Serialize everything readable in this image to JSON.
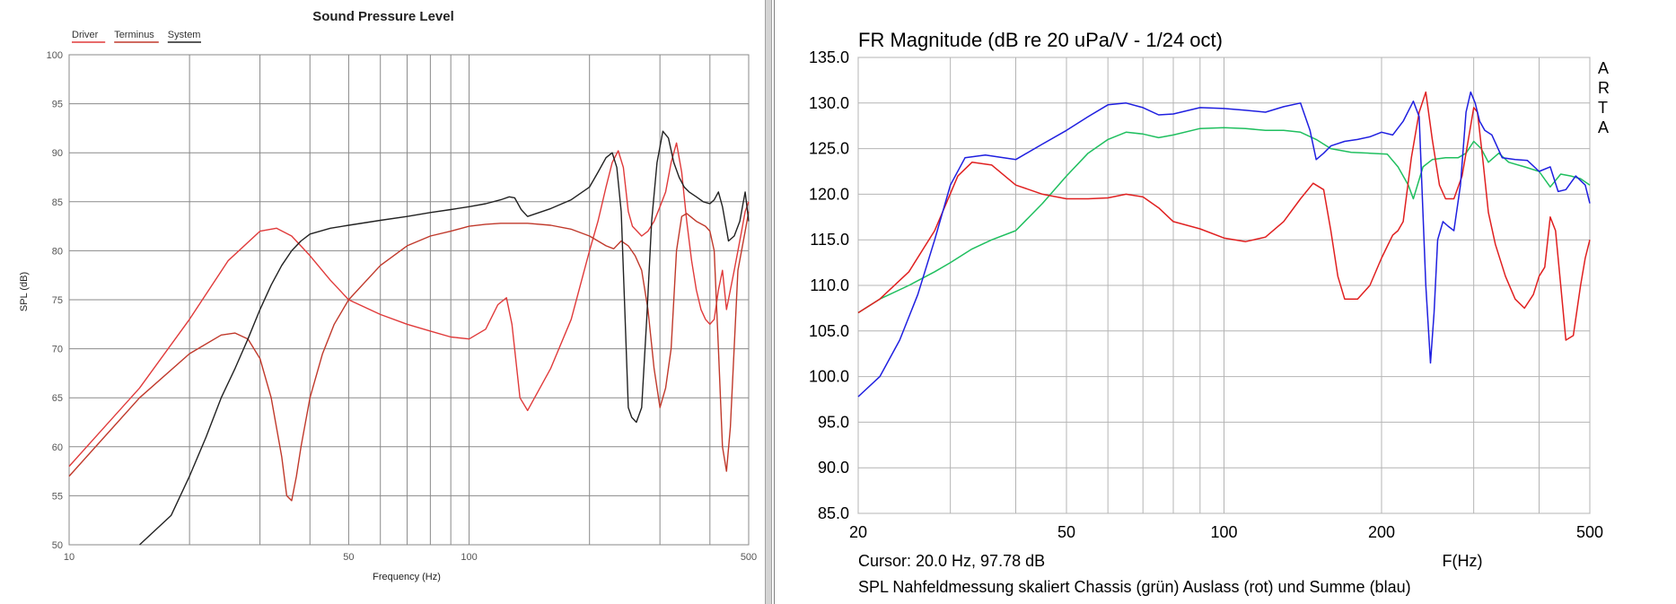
{
  "colors": {
    "driver": "#e03a3a",
    "terminus": "#c0392b",
    "system": "#222222",
    "blue": "#1f1fe0",
    "green": "#1fbf5f",
    "red": "#e02020"
  },
  "chart_data": [
    {
      "type": "line",
      "title": "Sound Pressure Level",
      "xlabel": "Frequency (Hz)",
      "ylabel": "SPL (dB)",
      "xscale": "log",
      "xlim": [
        10,
        500
      ],
      "ylim": [
        50,
        100
      ],
      "xticks": [
        10,
        50,
        100,
        500
      ],
      "xtick_labels": [
        "10",
        "50",
        "100",
        "500"
      ],
      "yticks": [
        50,
        55,
        60,
        65,
        70,
        75,
        80,
        85,
        90,
        95,
        100
      ],
      "ytick_labels": [
        "50",
        "55",
        "60",
        "65",
        "70",
        "75",
        "80",
        "85",
        "90",
        "95",
        "100"
      ],
      "grid": true,
      "legend_position": "top-left",
      "series": [
        {
          "name": "Driver",
          "color": "#e03a3a",
          "x": [
            10,
            15,
            20,
            25,
            30,
            33,
            36,
            40,
            45,
            50,
            60,
            70,
            80,
            90,
            100,
            110,
            118,
            124,
            128,
            134,
            140,
            160,
            180,
            200,
            210,
            220,
            228,
            236,
            243,
            250,
            256,
            263,
            270,
            280,
            290,
            300,
            310,
            320,
            330,
            340,
            350,
            360,
            370,
            380,
            390,
            400,
            410,
            420,
            430,
            440,
            460,
            480,
            490,
            500
          ],
          "y": [
            58,
            66,
            73,
            79,
            82,
            82.3,
            81.5,
            79.5,
            77,
            75,
            73.5,
            72.5,
            71.8,
            71.2,
            71,
            72,
            74.5,
            75.2,
            72.5,
            65,
            63.7,
            68,
            73,
            80,
            83,
            86.5,
            89,
            90.2,
            88.5,
            84,
            82.5,
            82,
            81.5,
            82,
            83,
            84.5,
            86,
            89,
            91,
            88,
            83,
            79,
            76,
            74,
            73,
            72.5,
            73,
            76,
            78,
            74,
            78,
            82,
            84,
            85
          ]
        },
        {
          "name": "Terminus",
          "color": "#c0392b",
          "x": [
            10,
            15,
            20,
            24,
            26,
            28,
            30,
            32,
            34,
            35,
            36,
            37,
            38,
            40,
            43,
            46,
            50,
            60,
            70,
            80,
            90,
            100,
            110,
            120,
            130,
            140,
            160,
            180,
            200,
            210,
            220,
            230,
            240,
            250,
            260,
            270,
            280,
            290,
            300,
            310,
            320,
            330,
            340,
            350,
            370,
            390,
            400,
            410,
            420,
            430,
            440,
            450,
            470,
            490,
            500
          ],
          "y": [
            57,
            65,
            69.5,
            71.4,
            71.6,
            71,
            69,
            65,
            59,
            55,
            54.5,
            57,
            60,
            65,
            69.5,
            72.5,
            75,
            78.5,
            80.5,
            81.5,
            82,
            82.5,
            82.7,
            82.8,
            82.8,
            82.8,
            82.6,
            82.2,
            81.5,
            81,
            80.5,
            80.2,
            81,
            80.5,
            79.5,
            78,
            74,
            68,
            64,
            66,
            70,
            80,
            83.5,
            83.8,
            83,
            82.5,
            82,
            80,
            70,
            60,
            57.5,
            62,
            78,
            82,
            84
          ]
        },
        {
          "name": "System",
          "color": "#222222",
          "x": [
            15,
            18,
            20,
            22,
            24,
            26,
            28,
            30,
            32,
            34,
            36,
            38,
            40,
            45,
            50,
            60,
            70,
            80,
            90,
            100,
            110,
            120,
            126,
            130,
            135,
            140,
            160,
            180,
            200,
            210,
            220,
            228,
            234,
            240,
            245,
            250,
            255,
            262,
            270,
            278,
            286,
            295,
            305,
            315,
            325,
            335,
            345,
            355,
            370,
            385,
            400,
            410,
            420,
            430,
            445,
            460,
            475,
            490,
            500
          ],
          "y": [
            50,
            53,
            57,
            61,
            65,
            68,
            71,
            74,
            76.5,
            78.5,
            80,
            81,
            81.7,
            82.3,
            82.6,
            83.1,
            83.5,
            83.9,
            84.2,
            84.5,
            84.8,
            85.2,
            85.5,
            85.4,
            84.2,
            83.5,
            84.3,
            85.2,
            86.5,
            88,
            89.5,
            90,
            88.5,
            84,
            74,
            64,
            63,
            62.5,
            64,
            73,
            83,
            89,
            92.2,
            91.5,
            89,
            87.5,
            86.5,
            86,
            85.5,
            85,
            84.8,
            85.2,
            86,
            84.5,
            81,
            81.5,
            83,
            86,
            83
          ]
        }
      ]
    },
    {
      "type": "line",
      "title": "FR Magnitude (dB re 20 uPa/V - 1/24 oct)",
      "xlabel": "F(Hz)",
      "xscale": "log",
      "xlim": [
        20,
        500
      ],
      "ylim": [
        85,
        135
      ],
      "xticks": [
        20,
        50,
        100,
        200,
        500
      ],
      "xtick_labels": [
        "20",
        "50",
        "100",
        "200",
        "500"
      ],
      "yticks": [
        85,
        90,
        95,
        100,
        105,
        110,
        115,
        120,
        125,
        130,
        135
      ],
      "ytick_labels": [
        "85.0",
        "90.0",
        "95.0",
        "100.0",
        "105.0",
        "110.0",
        "115.0",
        "120.0",
        "125.0",
        "130.0",
        "135.0"
      ],
      "grid": true,
      "side_text": [
        "A",
        "R",
        "T",
        "A"
      ],
      "cursor_text": "Cursor: 20.0 Hz, 97.78 dB",
      "caption": "SPL Nahfeldmessung skaliert Chassis (grün) Auslass (rot) und Summe (blau)",
      "series": [
        {
          "name": "Chassis (grün)",
          "color": "#1fbf5f",
          "x": [
            20,
            22,
            25,
            28,
            30,
            33,
            36,
            40,
            45,
            50,
            55,
            60,
            65,
            70,
            75,
            80,
            90,
            100,
            110,
            120,
            130,
            140,
            150,
            160,
            175,
            190,
            205,
            215,
            225,
            230,
            240,
            250,
            265,
            280,
            290,
            300,
            310,
            320,
            335,
            350,
            375,
            400,
            420,
            440,
            460,
            480,
            500
          ],
          "y": [
            107,
            108.5,
            110,
            111.5,
            112.5,
            114,
            115,
            116,
            119,
            122,
            124.5,
            126,
            126.8,
            126.6,
            126.2,
            126.5,
            127.2,
            127.3,
            127.2,
            127,
            127,
            126.8,
            126,
            125,
            124.6,
            124.5,
            124.4,
            123,
            121,
            119.5,
            123,
            123.8,
            124,
            124,
            124.5,
            125.8,
            125,
            123.5,
            124.5,
            123.5,
            123,
            122.5,
            120.8,
            122.2,
            122,
            121.7,
            121
          ]
        },
        {
          "name": "Auslass (rot)",
          "color": "#e02020",
          "x": [
            20,
            22,
            25,
            28,
            31,
            33,
            36,
            40,
            45,
            50,
            55,
            60,
            65,
            70,
            75,
            80,
            90,
            100,
            110,
            120,
            130,
            140,
            148,
            155,
            160,
            165,
            170,
            180,
            190,
            200,
            210,
            215,
            220,
            228,
            236,
            243,
            250,
            258,
            265,
            275,
            285,
            293,
            300,
            305,
            312,
            320,
            330,
            345,
            360,
            375,
            390,
            400,
            410,
            420,
            430,
            440,
            450,
            465,
            480,
            490,
            500
          ],
          "y": [
            107,
            108.5,
            111.5,
            116,
            122,
            123.5,
            123.2,
            121,
            120,
            119.5,
            119.5,
            119.6,
            120,
            119.7,
            118.5,
            117,
            116.2,
            115.2,
            114.8,
            115.3,
            117,
            119.5,
            121.2,
            120.5,
            116,
            111,
            108.5,
            108.5,
            110,
            113,
            115.5,
            116,
            117,
            124,
            129,
            131.2,
            126,
            121,
            119.5,
            119.5,
            122,
            126,
            129.5,
            129,
            124,
            118,
            114.5,
            111,
            108.5,
            107.5,
            109,
            111,
            112,
            117.5,
            116,
            110,
            104,
            104.5,
            110,
            113,
            115
          ]
        },
        {
          "name": "Summe (blau)",
          "color": "#1f1fe0",
          "x": [
            20,
            22,
            24,
            26,
            28,
            30,
            32,
            35,
            40,
            45,
            50,
            55,
            60,
            65,
            70,
            75,
            80,
            90,
            100,
            110,
            120,
            130,
            140,
            146,
            150,
            155,
            160,
            170,
            180,
            190,
            200,
            210,
            220,
            230,
            236,
            243,
            248,
            252,
            256,
            262,
            268,
            275,
            283,
            290,
            296,
            302,
            308,
            315,
            325,
            340,
            360,
            380,
            400,
            420,
            435,
            450,
            470,
            490,
            500
          ],
          "y": [
            97.8,
            100,
            104,
            109,
            115,
            121,
            124,
            124.3,
            123.8,
            125.5,
            127,
            128.5,
            129.8,
            130,
            129.5,
            128.7,
            128.8,
            129.5,
            129.4,
            129.2,
            129,
            129.6,
            130,
            127,
            123.8,
            124.5,
            125.3,
            125.8,
            126,
            126.3,
            126.8,
            126.5,
            128,
            130.2,
            128.5,
            110,
            101.5,
            107,
            115,
            117,
            116.5,
            116,
            121,
            129,
            131.2,
            130,
            128,
            127,
            126.5,
            124,
            123.8,
            123.7,
            122.5,
            123,
            120.3,
            120.5,
            122,
            121,
            119
          ]
        }
      ]
    }
  ]
}
